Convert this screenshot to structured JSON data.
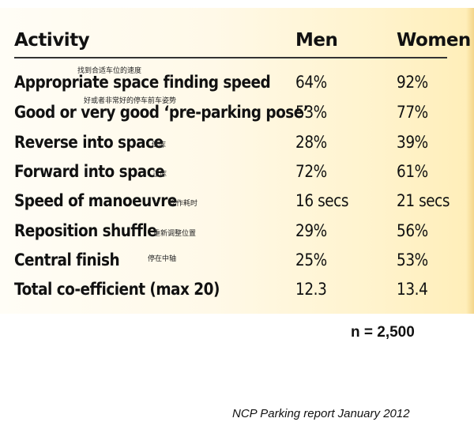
{
  "table": {
    "headers": {
      "activity": "Activity",
      "men": "Men",
      "women": "Women"
    },
    "rows": [
      {
        "activity": "Appropriate space finding speed",
        "note": "找到合适车位的速度",
        "men": "64%",
        "women": "92%"
      },
      {
        "activity": "Good or very good ‘pre-parking pose’",
        "note": "好或者非常好的停车前车姿势",
        "men": "53%",
        "women": "77%"
      },
      {
        "activity": "Reverse into space",
        "note": "倒库",
        "men": "28%",
        "women": "39%"
      },
      {
        "activity": "Forward into space",
        "note": "正库",
        "men": "72%",
        "women": "61%"
      },
      {
        "activity": "Speed of manoeuvre",
        "note": "操作耗时",
        "men": "16 secs",
        "women": "21 secs"
      },
      {
        "activity": "Reposition shuffle",
        "note": "重新调整位置",
        "men": "29%",
        "women": "56%"
      },
      {
        "activity": "Central finish",
        "note": "停在中轴",
        "men": "25%",
        "women": "53%"
      },
      {
        "activity": "Total co-efficient (max 20)",
        "note": "",
        "men": "12.3",
        "women": "13.4"
      }
    ]
  },
  "sample_size": "n = 2,500",
  "source": "NCP Parking report January 2012"
}
